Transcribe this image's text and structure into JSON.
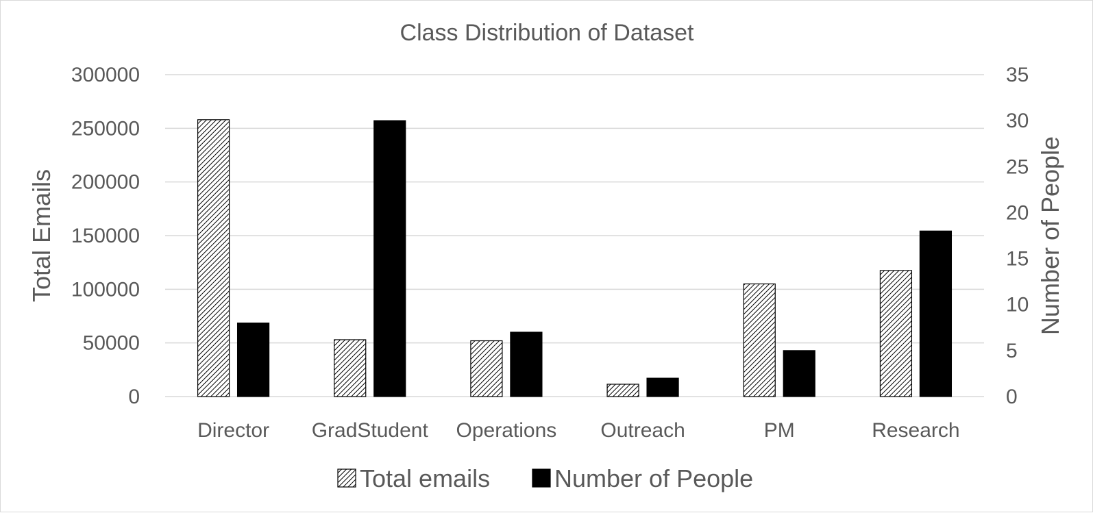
{
  "chart_data": {
    "type": "bar",
    "title": "Class Distribution of Dataset",
    "categories": [
      "Director",
      "GradStudent",
      "Operations",
      "Outreach",
      "PM",
      "Research"
    ],
    "series": [
      {
        "name": "Total emails",
        "axis": "left",
        "fill": "hatched",
        "values": [
          258000,
          53000,
          52000,
          11500,
          105000,
          117500
        ]
      },
      {
        "name": "Number of People",
        "axis": "right",
        "fill": "#000000",
        "values": [
          8,
          30,
          7,
          2,
          5,
          18
        ]
      }
    ],
    "ylabel": "Total Emails",
    "y2label": "Number of People",
    "xlabel": "",
    "ylim": [
      0,
      300000
    ],
    "y2lim": [
      0,
      35
    ],
    "yticks": [
      "0",
      "50000",
      "100000",
      "150000",
      "200000",
      "250000",
      "300000"
    ],
    "y2ticks": [
      "0",
      "5",
      "10",
      "15",
      "20",
      "25",
      "30",
      "35"
    ],
    "grid": true,
    "legend": "bottom"
  }
}
